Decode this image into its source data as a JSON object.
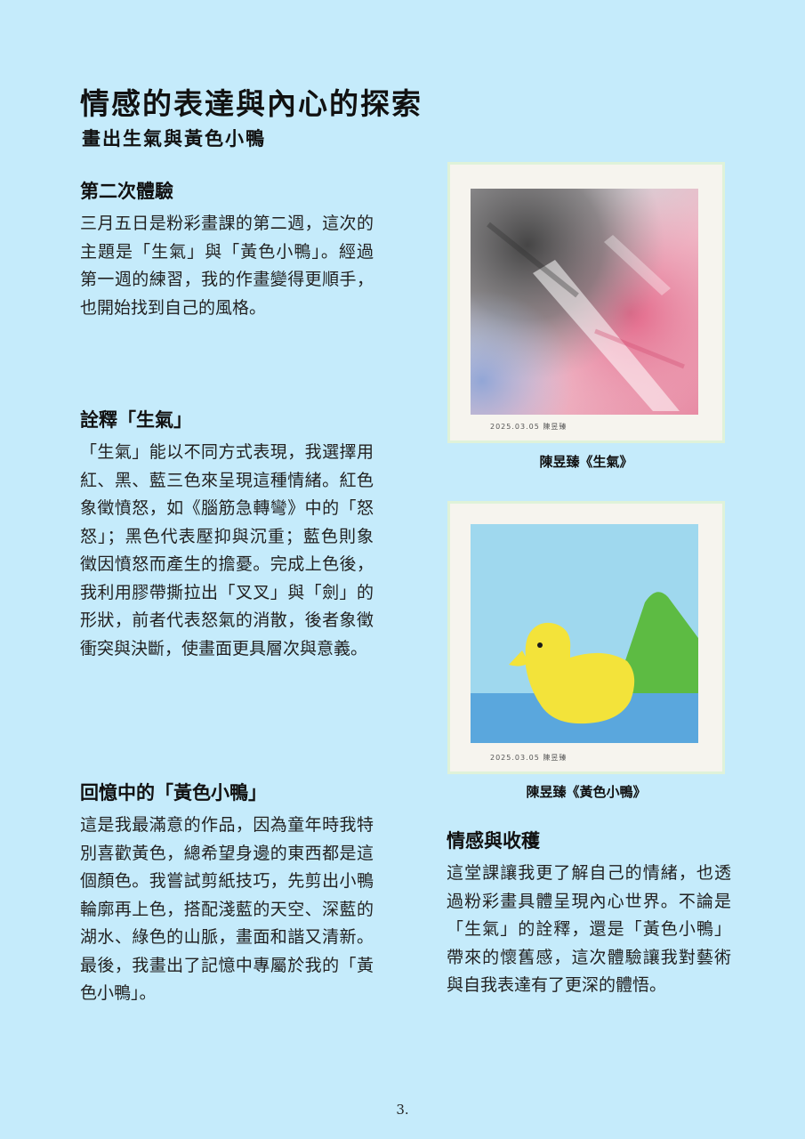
{
  "header": {
    "title": "情感的表達與內心的探索",
    "subtitle": "畫出生氣與黃色小鴨"
  },
  "sections": {
    "second_experience": {
      "heading": "第二次體驗",
      "body": "三月五日是粉彩畫課的第二週，這次的主題是「生氣」與「黃色小鴨」。經過第一週的練習，我的作畫變得更順手，也開始找到自己的風格。"
    },
    "anger": {
      "heading": "詮釋「生氣」",
      "body": "「生氣」能以不同方式表現，我選擇用紅、黑、藍三色來呈現這種情緒。紅色象徵憤怒，如《腦筋急轉彎》中的「怒怒」；黑色代表壓抑與沉重；藍色則象徵因憤怒而產生的擔憂。完成上色後，我利用膠帶撕拉出「叉叉」與「劍」的形狀，前者代表怒氣的消散，後者象徵衝突與決斷，使畫面更具層次與意義。"
    },
    "duck": {
      "heading": "回憶中的「黃色小鴨」",
      "body": "這是我最滿意的作品，因為童年時我特別喜歡黃色，總希望身邊的東西都是這個顏色。我嘗試剪紙技巧，先剪出小鴨輪廓再上色，搭配淺藍的天空、深藍的湖水、綠色的山脈，畫面和諧又清新。最後，我畫出了記憶中專屬於我的「黃色小鴨」。"
    },
    "harvest": {
      "heading": "情感與收穫",
      "body": "這堂課讓我更了解自己的情緒，也透過粉彩畫具體呈現內心世界。不論是「生氣」的詮釋，還是「黃色小鴨」帶來的懷舊感，這次體驗讓我對藝術與自我表達有了更深的體悟。"
    }
  },
  "artworks": {
    "anger": {
      "caption": "陳昱臻《生氣》",
      "signature": "2025.03.05  陳昱臻"
    },
    "duck": {
      "caption": "陳昱臻《黃色小鴨》",
      "signature": "2025.03.05  陳昱臻"
    }
  },
  "footer": {
    "page_number": "3."
  },
  "colors": {
    "background": "#c5ebfb",
    "sky": "#9fd8ee",
    "lake": "#5aa7dd",
    "duck": "#f3e33a",
    "mountain": "#5dbb43"
  }
}
